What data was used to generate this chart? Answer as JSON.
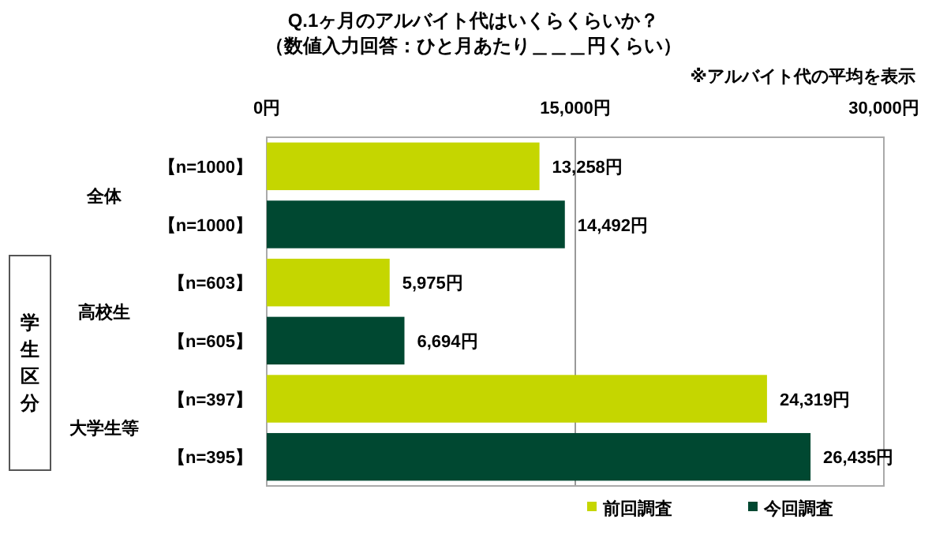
{
  "chart_data": {
    "type": "bar",
    "orientation": "horizontal",
    "title": "Q.1ヶ月のアルバイト代はいくらくらいか？",
    "subtitle": "（数値入力回答：ひと月あたり＿＿＿円くらい）",
    "categories": [
      "【n=1000】",
      "【n=1000】",
      "【n=603】",
      "【n=605】",
      "【n=397】",
      "【n=395】"
    ],
    "series": [
      {
        "name": "前回調査",
        "color": "#c5d600",
        "values": [
          13258,
          null,
          5975,
          null,
          24319,
          null
        ],
        "value_labels": [
          "13,258円",
          null,
          "5,975円",
          null,
          "24,319円",
          null
        ]
      },
      {
        "name": "今回調査",
        "color": "#004831",
        "values": [
          null,
          14492,
          null,
          6694,
          null,
          26435
        ],
        "value_labels": [
          null,
          "14,492円",
          null,
          "6,694円",
          null,
          "26,435円"
        ]
      }
    ],
    "xlim": [
      0,
      30000
    ],
    "xticks": [
      {
        "value": 0,
        "label": "0円"
      },
      {
        "value": 15000,
        "label": "15,000円"
      },
      {
        "value": 30000,
        "label": "30,000円"
      }
    ],
    "grid": "x",
    "legend": "bottom right",
    "annotations": [
      "※アルバイト代の平均を表示",
      "全体",
      "高校生",
      "大学生等",
      "学生区分"
    ]
  }
}
